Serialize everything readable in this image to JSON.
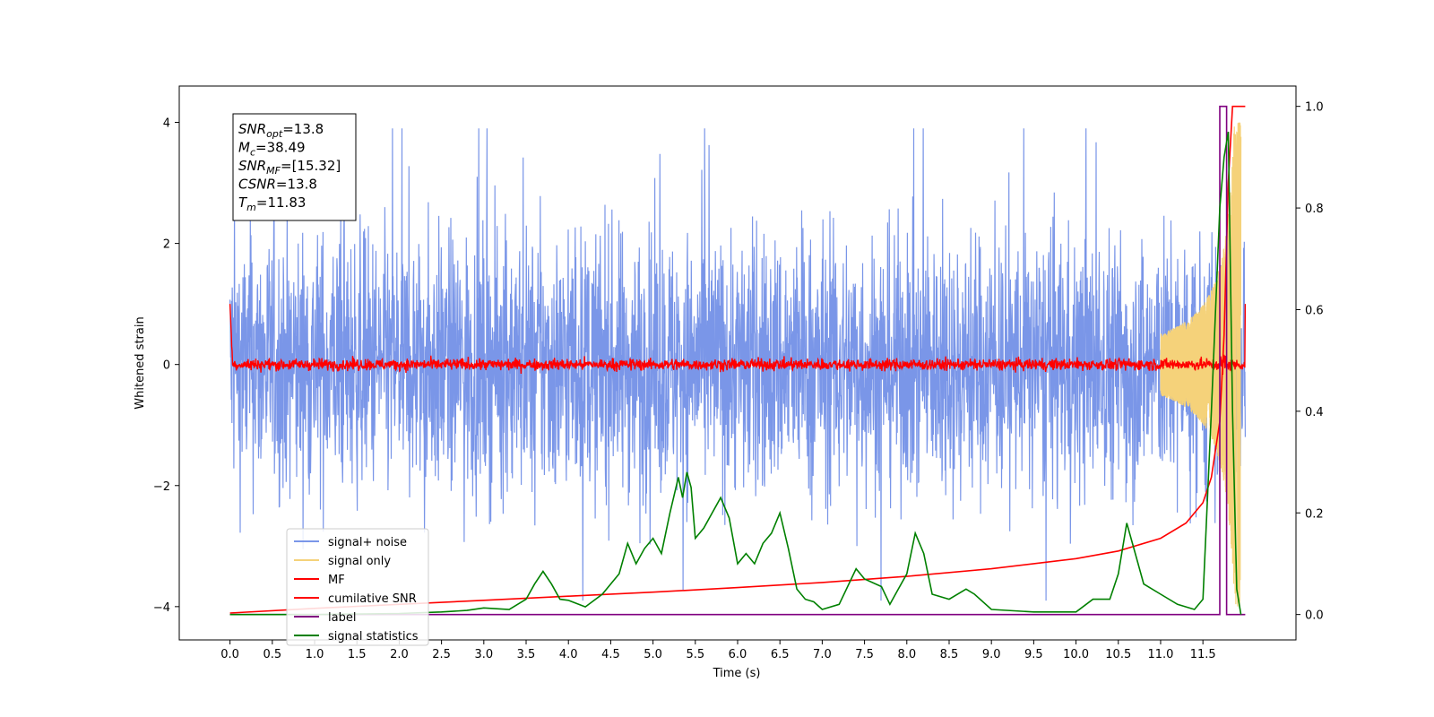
{
  "chart_data": {
    "type": "line",
    "xlabel": "Time (s)",
    "ylabel": "Whitened strain",
    "xlim": [
      -0.6,
      12.6
    ],
    "ylim": [
      -4.55,
      4.6
    ],
    "y2lim": [
      -0.05,
      1.04
    ],
    "x_ticks": [
      "0.0",
      "0.5",
      "1.0",
      "1.5",
      "2.0",
      "2.5",
      "3.0",
      "3.5",
      "4.0",
      "4.5",
      "5.0",
      "5.5",
      "6.0",
      "6.5",
      "7.0",
      "7.5",
      "8.0",
      "8.5",
      "9.0",
      "9.5",
      "10.0",
      "10.5",
      "11.0",
      "11.5"
    ],
    "y_ticks": [
      "4",
      "2",
      "0",
      "−2",
      "−4"
    ],
    "y2_ticks": [
      "1.0",
      "0.8",
      "0.6",
      "0.4",
      "0.2",
      "0.0"
    ],
    "annotation": {
      "lines": [
        {
          "sym": "SNR",
          "sub": "opt",
          "val": "=13.8"
        },
        {
          "sym": "M",
          "sub": "c",
          "val": "=38.49"
        },
        {
          "sym": "SNR",
          "sub": "MF",
          "val": "=[15.32]"
        },
        {
          "sym": "CSNR",
          "sub": "",
          "val": "=13.8"
        },
        {
          "sym": "T",
          "sub": "m",
          "val": "=11.83"
        }
      ]
    },
    "legend": {
      "position": "lower-left",
      "entries": [
        {
          "label": "signal+ noise",
          "color": "#7a96e8"
        },
        {
          "label": "signal only",
          "color": "#f5d27a"
        },
        {
          "label": "MF",
          "color": "#ff0000"
        },
        {
          "label": "cumilative SNR",
          "color": "#ff0000"
        },
        {
          "label": "label",
          "color": "#800080"
        },
        {
          "label": "signal statistics",
          "color": "#008000"
        }
      ]
    },
    "series": [
      {
        "name": "signal+ noise",
        "axis": "left",
        "color": "#7a96e8",
        "x_range": [
          0.0,
          12.0
        ],
        "amplitude": 3.9
      },
      {
        "name": "signal only",
        "axis": "left",
        "color": "#f5d27a",
        "x_range": [
          11.0,
          11.95
        ],
        "peak_amplitude": 4.0
      },
      {
        "name": "MF",
        "axis": "left",
        "color": "#ff0000",
        "x_range": [
          0.0,
          12.0
        ],
        "level": 0.0,
        "noise": 0.08,
        "end_values": [
          1.0,
          1.0
        ]
      },
      {
        "name": "cumilative SNR",
        "axis": "right",
        "color": "#ff0000",
        "x": [
          0.0,
          1.0,
          2.0,
          3.0,
          4.0,
          5.0,
          6.0,
          7.0,
          8.0,
          9.0,
          10.0,
          10.5,
          11.0,
          11.3,
          11.5,
          11.6,
          11.7,
          11.75,
          11.8,
          11.85,
          12.0
        ],
        "y": [
          0.003,
          0.012,
          0.02,
          0.028,
          0.036,
          0.044,
          0.053,
          0.063,
          0.075,
          0.09,
          0.11,
          0.125,
          0.15,
          0.18,
          0.22,
          0.27,
          0.38,
          0.55,
          0.85,
          1.0,
          1.0
        ]
      },
      {
        "name": "label",
        "axis": "right",
        "color": "#800080",
        "x": [
          0.0,
          11.7,
          11.7,
          11.78,
          11.78,
          11.85,
          11.85,
          12.0
        ],
        "y": [
          0.0,
          0.0,
          1.0,
          1.0,
          0.0,
          0.0,
          0.0,
          0.0
        ]
      },
      {
        "name": "signal statistics",
        "axis": "right",
        "color": "#008000",
        "x": [
          0.0,
          1.0,
          2.0,
          2.5,
          2.8,
          3.0,
          3.3,
          3.5,
          3.6,
          3.7,
          3.8,
          3.9,
          4.0,
          4.2,
          4.4,
          4.6,
          4.7,
          4.8,
          4.9,
          5.0,
          5.1,
          5.2,
          5.3,
          5.35,
          5.4,
          5.45,
          5.5,
          5.6,
          5.8,
          5.9,
          6.0,
          6.1,
          6.2,
          6.3,
          6.4,
          6.5,
          6.6,
          6.7,
          6.8,
          6.9,
          7.0,
          7.2,
          7.4,
          7.5,
          7.7,
          7.8,
          7.9,
          8.0,
          8.1,
          8.2,
          8.3,
          8.5,
          8.7,
          8.8,
          9.0,
          9.5,
          10.0,
          10.2,
          10.4,
          10.5,
          10.6,
          10.7,
          10.8,
          11.0,
          11.2,
          11.4,
          11.5,
          11.6,
          11.7,
          11.75,
          11.8,
          11.85,
          11.9,
          11.95
        ],
        "y": [
          0.0,
          0.0,
          0.002,
          0.005,
          0.008,
          0.013,
          0.01,
          0.03,
          0.06,
          0.085,
          0.06,
          0.03,
          0.028,
          0.015,
          0.04,
          0.08,
          0.14,
          0.1,
          0.13,
          0.15,
          0.12,
          0.2,
          0.27,
          0.23,
          0.28,
          0.25,
          0.15,
          0.17,
          0.23,
          0.19,
          0.1,
          0.12,
          0.1,
          0.14,
          0.16,
          0.2,
          0.13,
          0.05,
          0.03,
          0.025,
          0.01,
          0.02,
          0.09,
          0.07,
          0.055,
          0.02,
          0.05,
          0.08,
          0.16,
          0.12,
          0.04,
          0.03,
          0.05,
          0.04,
          0.01,
          0.005,
          0.005,
          0.03,
          0.03,
          0.08,
          0.18,
          0.12,
          0.06,
          0.04,
          0.02,
          0.01,
          0.03,
          0.4,
          0.8,
          0.9,
          0.95,
          0.4,
          0.05,
          0.0
        ]
      }
    ]
  }
}
